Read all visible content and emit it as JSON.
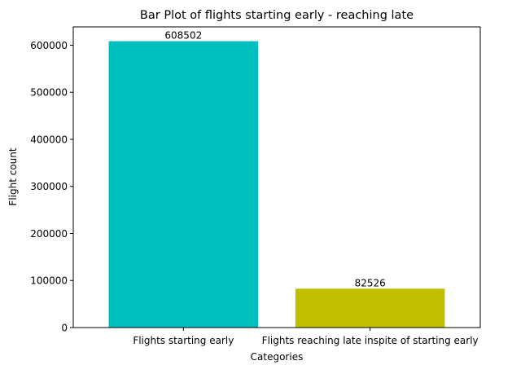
{
  "chart_data": {
    "type": "bar",
    "title": "Bar Plot of flights starting early - reaching late",
    "xlabel": "Categories",
    "ylabel": "Flight count",
    "categories": [
      "Flights starting early",
      "Flights reaching late inspite of starting early"
    ],
    "values": [
      608502,
      82526
    ],
    "value_labels": [
      "608502",
      "82526"
    ],
    "colors": [
      "#00bfbf",
      "#bfbf00"
    ],
    "ylim": [
      0,
      638927
    ],
    "yticks": [
      0,
      100000,
      200000,
      300000,
      400000,
      500000,
      600000
    ],
    "ytick_labels": [
      "0",
      "100000",
      "200000",
      "300000",
      "400000",
      "500000",
      "600000"
    ],
    "grid": false,
    "legend": "none"
  }
}
